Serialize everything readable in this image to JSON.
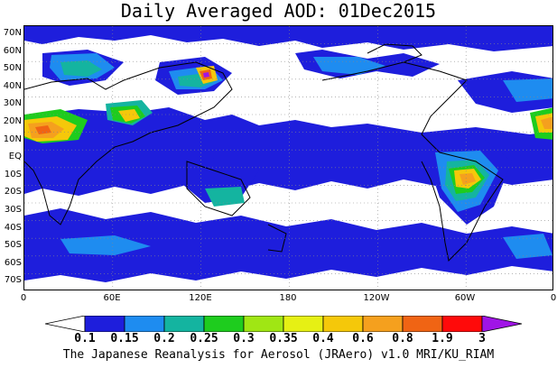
{
  "title": "Daily Averaged AOD: 01Dec2015",
  "lat_labels": [
    "70N",
    "60N",
    "50N",
    "40N",
    "30N",
    "20N",
    "10N",
    "EQ",
    "10S",
    "20S",
    "30S",
    "40S",
    "50S",
    "60S",
    "70S"
  ],
  "lon_labels": [
    "0",
    "60E",
    "120E",
    "180",
    "120W",
    "60W",
    "0"
  ],
  "legend": {
    "labels": [
      "0.1",
      "0.15",
      "0.2",
      "0.25",
      "0.3",
      "0.35",
      "0.4",
      "0.6",
      "0.8",
      "1.9",
      "3"
    ],
    "colors": [
      "#ffffff",
      "#1e1edc",
      "#1e8cf0",
      "#14b4a0",
      "#1ecc1e",
      "#a0e614",
      "#e6f014",
      "#f5c80a",
      "#f5a01e",
      "#f06414",
      "#ff0a0a",
      "#a014e6"
    ]
  },
  "credit": "The Japanese Reanalysis for Aerosol (JRAero) v1.0 MRI/KU_RIAM"
}
